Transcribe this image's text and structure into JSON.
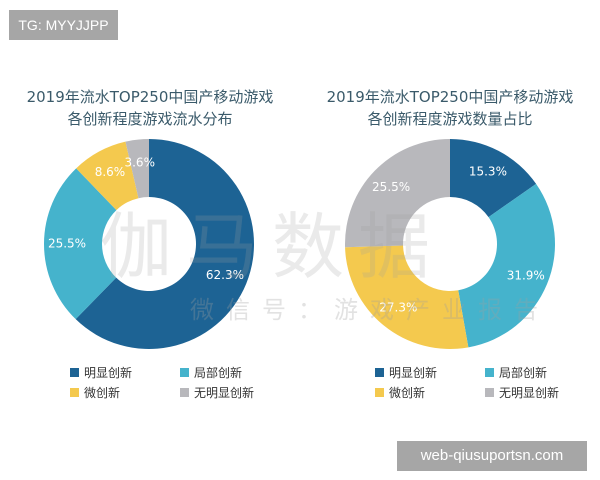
{
  "watermark_tag": "TG: MYYJJPP",
  "watermark_site": "web-qiusuportsn.com",
  "watermark_brand": "伽马数据",
  "watermark_subtitle": "微信号：游戏产业报告",
  "colors": {
    "明显创新": "#1d6394",
    "局部创新": "#45b3cc",
    "微创新": "#f4c94e",
    "无明显创新": "#b8b8bc"
  },
  "chart_data": [
    {
      "type": "pie",
      "donut": true,
      "title_line1": "2019年流水TOP250中国产移动游戏",
      "title_line2": "各创新程度游戏流水分布",
      "categories": [
        "明显创新",
        "局部创新",
        "微创新",
        "无明显创新"
      ],
      "values": [
        62.3,
        25.5,
        8.6,
        3.6
      ],
      "labels": [
        "62.3%",
        "25.5%",
        "8.6%",
        "3.6%"
      ],
      "legend": "bottom"
    },
    {
      "type": "pie",
      "donut": true,
      "title_line1": "2019年流水TOP250中国产移动游戏",
      "title_line2": "各创新程度游戏数量占比",
      "categories": [
        "明显创新",
        "局部创新",
        "微创新",
        "无明显创新"
      ],
      "values": [
        15.3,
        31.9,
        27.3,
        25.5
      ],
      "labels": [
        "15.3%",
        "31.9%",
        "27.3%",
        "25.5%"
      ],
      "legend": "bottom"
    }
  ]
}
